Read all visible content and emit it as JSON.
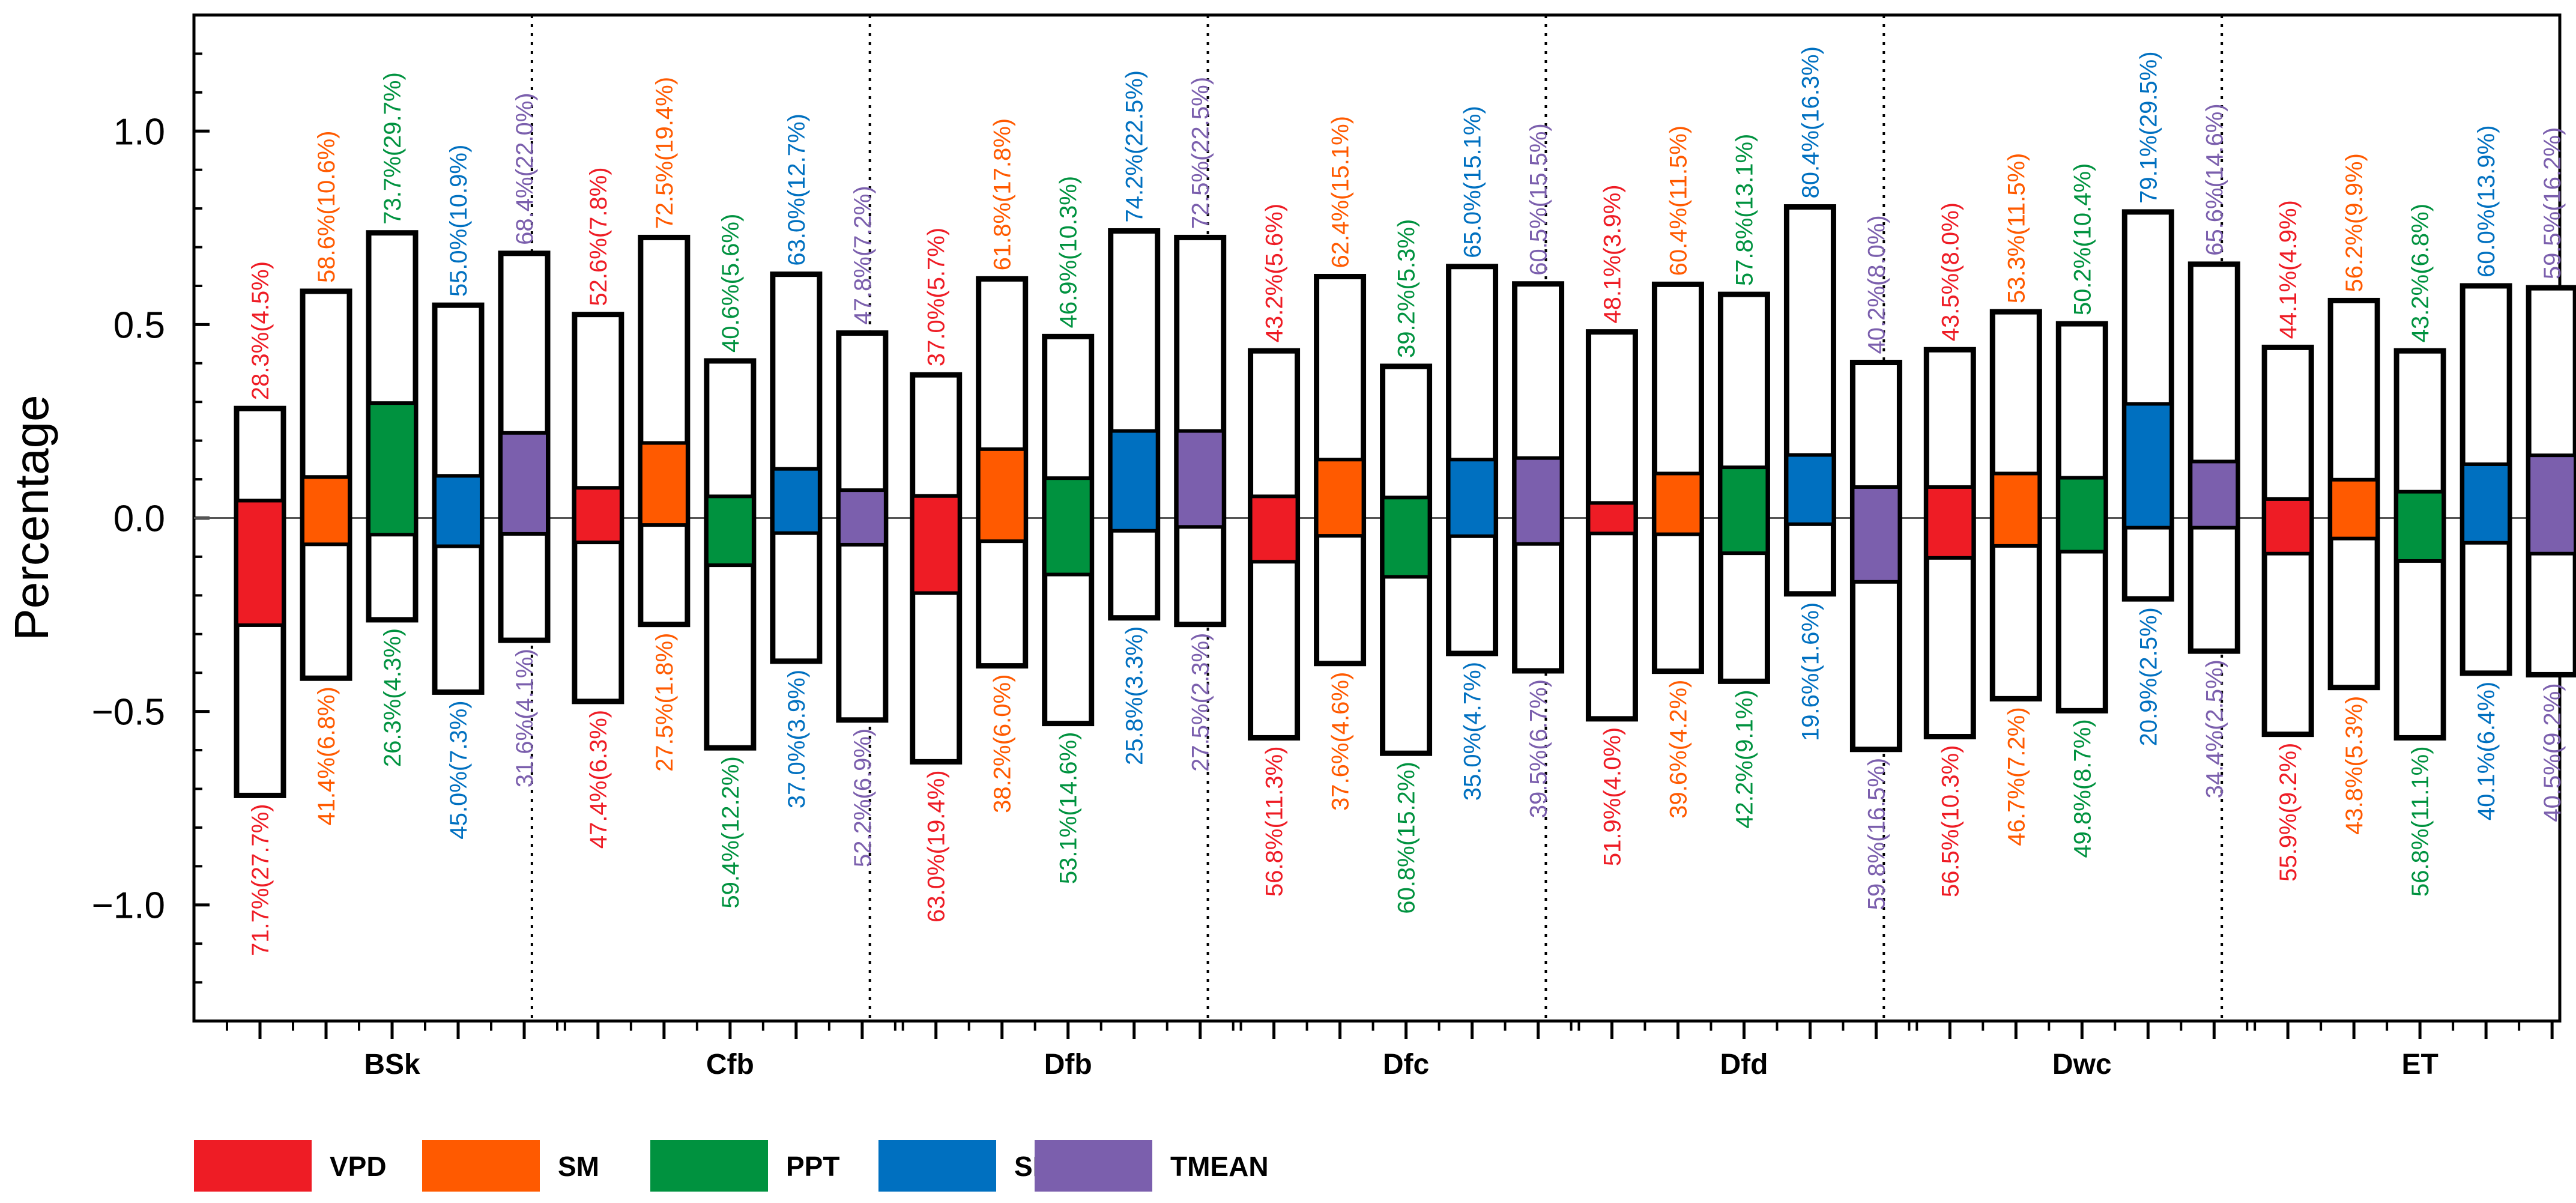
{
  "chart_data": {
    "type": "floating-bar",
    "title": "",
    "ylabel": "Percentage",
    "xlabel": "",
    "ylim": [
      -1.3,
      1.3
    ],
    "yticks": [
      -1.0,
      -0.5,
      0.0,
      0.5,
      1.0
    ],
    "ytick_labels": [
      "−1.0",
      "−0.5",
      "0.0",
      "0.5",
      "1.0"
    ],
    "categories": [
      "BSk",
      "Cfb",
      "Dfb",
      "Dfc",
      "Dfd",
      "Dwc",
      "ET"
    ],
    "legend_position": "bottom-left",
    "series": [
      {
        "name": "VPD",
        "color": "#ee1c25",
        "pos": [
          0.283,
          0.526,
          0.37,
          0.432,
          0.481,
          0.435,
          0.441
        ],
        "neg": [
          -0.717,
          -0.474,
          -0.63,
          -0.568,
          -0.519,
          -0.565,
          -0.559
        ],
        "pos_inner": [
          0.045,
          0.078,
          0.057,
          0.056,
          0.039,
          0.08,
          0.049
        ],
        "neg_inner": [
          -0.277,
          -0.063,
          -0.194,
          -0.113,
          -0.04,
          -0.103,
          -0.092
        ],
        "pos_label": [
          "28.3%(4.5%)",
          "52.6%(7.8%)",
          "37.0%(5.7%)",
          "43.2%(5.6%)",
          "48.1%(3.9%)",
          "43.5%(8.0%)",
          "44.1%(4.9%)"
        ],
        "neg_label": [
          "71.7%(27.7%)",
          "47.4%(6.3%)",
          "63.0%(19.4%)",
          "56.8%(11.3%)",
          "51.9%(4.0%)",
          "56.5%(10.3%)",
          "55.9%(9.2%)"
        ]
      },
      {
        "name": "SM",
        "color": "#ff5a00",
        "pos": [
          0.586,
          0.725,
          0.618,
          0.624,
          0.604,
          0.533,
          0.562
        ],
        "neg": [
          -0.414,
          -0.275,
          -0.382,
          -0.376,
          -0.396,
          -0.467,
          -0.438
        ],
        "pos_inner": [
          0.106,
          0.194,
          0.178,
          0.151,
          0.115,
          0.115,
          0.099
        ],
        "neg_inner": [
          -0.068,
          -0.018,
          -0.06,
          -0.046,
          -0.042,
          -0.072,
          -0.053
        ],
        "pos_label": [
          "58.6%(10.6%)",
          "72.5%(19.4%)",
          "61.8%(17.8%)",
          "62.4%(15.1%)",
          "60.4%(11.5%)",
          "53.3%(11.5%)",
          "56.2%(9.9%)"
        ],
        "neg_label": [
          "41.4%(6.8%)",
          "27.5%(1.8%)",
          "38.2%(6.0%)",
          "37.6%(4.6%)",
          "39.6%(4.2%)",
          "46.7%(7.2%)",
          "43.8%(5.3%)"
        ]
      },
      {
        "name": "PPT",
        "color": "#00923f",
        "pos": [
          0.737,
          0.406,
          0.469,
          0.392,
          0.578,
          0.502,
          0.432
        ],
        "neg": [
          -0.263,
          -0.594,
          -0.531,
          -0.608,
          -0.422,
          -0.498,
          -0.568
        ],
        "pos_inner": [
          0.297,
          0.056,
          0.103,
          0.053,
          0.131,
          0.104,
          0.068
        ],
        "neg_inner": [
          -0.043,
          -0.122,
          -0.146,
          -0.152,
          -0.091,
          -0.087,
          -0.111
        ],
        "pos_label": [
          "73.7%(29.7%)",
          "40.6%(5.6%)",
          "46.9%(10.3%)",
          "39.2%(5.3%)",
          "57.8%(13.1%)",
          "50.2%(10.4%)",
          "43.2%(6.8%)"
        ],
        "neg_label": [
          "26.3%(4.3%)",
          "59.4%(12.2%)",
          "53.1%(14.6%)",
          "60.8%(15.2%)",
          "42.2%(9.1%)",
          "49.8%(8.7%)",
          "56.8%(11.1%)"
        ]
      },
      {
        "name": "SRAD",
        "color": "#0070c0",
        "pos": [
          0.55,
          0.63,
          0.742,
          0.65,
          0.804,
          0.791,
          0.6
        ],
        "neg": [
          -0.45,
          -0.37,
          -0.258,
          -0.35,
          -0.196,
          -0.209,
          -0.401
        ],
        "pos_inner": [
          0.109,
          0.127,
          0.225,
          0.151,
          0.163,
          0.295,
          0.139
        ],
        "neg_inner": [
          -0.073,
          -0.039,
          -0.033,
          -0.047,
          -0.016,
          -0.025,
          -0.064
        ],
        "pos_label": [
          "55.0%(10.9%)",
          "63.0%(12.7%)",
          "74.2%(22.5%)",
          "65.0%(15.1%)",
          "80.4%(16.3%)",
          "79.1%(29.5%)",
          "60.0%(13.9%)"
        ],
        "neg_label": [
          "45.0%(7.3%)",
          "37.0%(3.9%)",
          "25.8%(3.3%)",
          "35.0%(4.7%)",
          "19.6%(1.6%)",
          "20.9%(2.5%)",
          "40.1%(6.4%)"
        ]
      },
      {
        "name": "TMEAN",
        "color": "#7b5fad",
        "pos": [
          0.684,
          0.478,
          0.725,
          0.605,
          0.402,
          0.656,
          0.595
        ],
        "neg": [
          -0.316,
          -0.522,
          -0.275,
          -0.395,
          -0.598,
          -0.344,
          -0.405
        ],
        "pos_inner": [
          0.22,
          0.072,
          0.225,
          0.155,
          0.08,
          0.146,
          0.162
        ],
        "neg_inner": [
          -0.041,
          -0.069,
          -0.023,
          -0.067,
          -0.165,
          -0.025,
          -0.092
        ],
        "pos_label": [
          "68.4%(22.0%)",
          "47.8%(7.2%)",
          "72.5%(22.5%)",
          "60.5%(15.5%)",
          "40.2%(8.0%)",
          "65.6%(14.6%)",
          "59.5%(16.2%)"
        ],
        "neg_label": [
          "31.6%(4.1%)",
          "52.2%(6.9%)",
          "27.5%(2.3%)",
          "39.5%(6.7%)",
          "59.8%(16.5%)",
          "34.4%(2.5%)",
          "40.5%(9.2%)"
        ]
      }
    ]
  }
}
